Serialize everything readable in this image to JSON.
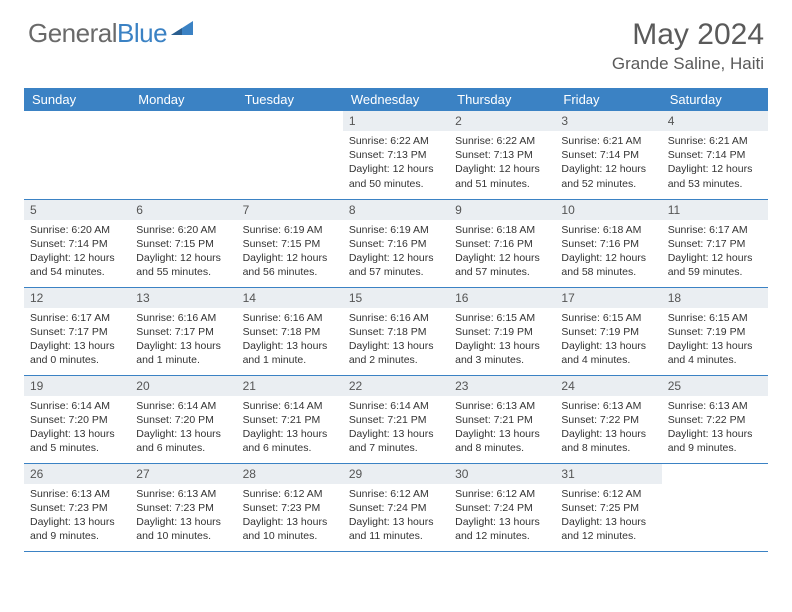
{
  "brand": {
    "part1": "General",
    "part2": "Blue"
  },
  "title": "May 2024",
  "location": "Grande Saline, Haiti",
  "colors": {
    "header_bg": "#3b82c4",
    "header_text": "#ffffff",
    "daynum_bg": "#eaeef2",
    "border": "#3b82c4",
    "title_color": "#5a5a5a",
    "logo_gray": "#6a6a6a",
    "logo_blue": "#3b82c4"
  },
  "weekdays": [
    "Sunday",
    "Monday",
    "Tuesday",
    "Wednesday",
    "Thursday",
    "Friday",
    "Saturday"
  ],
  "weeks": [
    [
      null,
      null,
      null,
      {
        "n": "1",
        "sr": "Sunrise: 6:22 AM",
        "ss": "Sunset: 7:13 PM",
        "d1": "Daylight: 12 hours",
        "d2": "and 50 minutes."
      },
      {
        "n": "2",
        "sr": "Sunrise: 6:22 AM",
        "ss": "Sunset: 7:13 PM",
        "d1": "Daylight: 12 hours",
        "d2": "and 51 minutes."
      },
      {
        "n": "3",
        "sr": "Sunrise: 6:21 AM",
        "ss": "Sunset: 7:14 PM",
        "d1": "Daylight: 12 hours",
        "d2": "and 52 minutes."
      },
      {
        "n": "4",
        "sr": "Sunrise: 6:21 AM",
        "ss": "Sunset: 7:14 PM",
        "d1": "Daylight: 12 hours",
        "d2": "and 53 minutes."
      }
    ],
    [
      {
        "n": "5",
        "sr": "Sunrise: 6:20 AM",
        "ss": "Sunset: 7:14 PM",
        "d1": "Daylight: 12 hours",
        "d2": "and 54 minutes."
      },
      {
        "n": "6",
        "sr": "Sunrise: 6:20 AM",
        "ss": "Sunset: 7:15 PM",
        "d1": "Daylight: 12 hours",
        "d2": "and 55 minutes."
      },
      {
        "n": "7",
        "sr": "Sunrise: 6:19 AM",
        "ss": "Sunset: 7:15 PM",
        "d1": "Daylight: 12 hours",
        "d2": "and 56 minutes."
      },
      {
        "n": "8",
        "sr": "Sunrise: 6:19 AM",
        "ss": "Sunset: 7:16 PM",
        "d1": "Daylight: 12 hours",
        "d2": "and 57 minutes."
      },
      {
        "n": "9",
        "sr": "Sunrise: 6:18 AM",
        "ss": "Sunset: 7:16 PM",
        "d1": "Daylight: 12 hours",
        "d2": "and 57 minutes."
      },
      {
        "n": "10",
        "sr": "Sunrise: 6:18 AM",
        "ss": "Sunset: 7:16 PM",
        "d1": "Daylight: 12 hours",
        "d2": "and 58 minutes."
      },
      {
        "n": "11",
        "sr": "Sunrise: 6:17 AM",
        "ss": "Sunset: 7:17 PM",
        "d1": "Daylight: 12 hours",
        "d2": "and 59 minutes."
      }
    ],
    [
      {
        "n": "12",
        "sr": "Sunrise: 6:17 AM",
        "ss": "Sunset: 7:17 PM",
        "d1": "Daylight: 13 hours",
        "d2": "and 0 minutes."
      },
      {
        "n": "13",
        "sr": "Sunrise: 6:16 AM",
        "ss": "Sunset: 7:17 PM",
        "d1": "Daylight: 13 hours",
        "d2": "and 1 minute."
      },
      {
        "n": "14",
        "sr": "Sunrise: 6:16 AM",
        "ss": "Sunset: 7:18 PM",
        "d1": "Daylight: 13 hours",
        "d2": "and 1 minute."
      },
      {
        "n": "15",
        "sr": "Sunrise: 6:16 AM",
        "ss": "Sunset: 7:18 PM",
        "d1": "Daylight: 13 hours",
        "d2": "and 2 minutes."
      },
      {
        "n": "16",
        "sr": "Sunrise: 6:15 AM",
        "ss": "Sunset: 7:19 PM",
        "d1": "Daylight: 13 hours",
        "d2": "and 3 minutes."
      },
      {
        "n": "17",
        "sr": "Sunrise: 6:15 AM",
        "ss": "Sunset: 7:19 PM",
        "d1": "Daylight: 13 hours",
        "d2": "and 4 minutes."
      },
      {
        "n": "18",
        "sr": "Sunrise: 6:15 AM",
        "ss": "Sunset: 7:19 PM",
        "d1": "Daylight: 13 hours",
        "d2": "and 4 minutes."
      }
    ],
    [
      {
        "n": "19",
        "sr": "Sunrise: 6:14 AM",
        "ss": "Sunset: 7:20 PM",
        "d1": "Daylight: 13 hours",
        "d2": "and 5 minutes."
      },
      {
        "n": "20",
        "sr": "Sunrise: 6:14 AM",
        "ss": "Sunset: 7:20 PM",
        "d1": "Daylight: 13 hours",
        "d2": "and 6 minutes."
      },
      {
        "n": "21",
        "sr": "Sunrise: 6:14 AM",
        "ss": "Sunset: 7:21 PM",
        "d1": "Daylight: 13 hours",
        "d2": "and 6 minutes."
      },
      {
        "n": "22",
        "sr": "Sunrise: 6:14 AM",
        "ss": "Sunset: 7:21 PM",
        "d1": "Daylight: 13 hours",
        "d2": "and 7 minutes."
      },
      {
        "n": "23",
        "sr": "Sunrise: 6:13 AM",
        "ss": "Sunset: 7:21 PM",
        "d1": "Daylight: 13 hours",
        "d2": "and 8 minutes."
      },
      {
        "n": "24",
        "sr": "Sunrise: 6:13 AM",
        "ss": "Sunset: 7:22 PM",
        "d1": "Daylight: 13 hours",
        "d2": "and 8 minutes."
      },
      {
        "n": "25",
        "sr": "Sunrise: 6:13 AM",
        "ss": "Sunset: 7:22 PM",
        "d1": "Daylight: 13 hours",
        "d2": "and 9 minutes."
      }
    ],
    [
      {
        "n": "26",
        "sr": "Sunrise: 6:13 AM",
        "ss": "Sunset: 7:23 PM",
        "d1": "Daylight: 13 hours",
        "d2": "and 9 minutes."
      },
      {
        "n": "27",
        "sr": "Sunrise: 6:13 AM",
        "ss": "Sunset: 7:23 PM",
        "d1": "Daylight: 13 hours",
        "d2": "and 10 minutes."
      },
      {
        "n": "28",
        "sr": "Sunrise: 6:12 AM",
        "ss": "Sunset: 7:23 PM",
        "d1": "Daylight: 13 hours",
        "d2": "and 10 minutes."
      },
      {
        "n": "29",
        "sr": "Sunrise: 6:12 AM",
        "ss": "Sunset: 7:24 PM",
        "d1": "Daylight: 13 hours",
        "d2": "and 11 minutes."
      },
      {
        "n": "30",
        "sr": "Sunrise: 6:12 AM",
        "ss": "Sunset: 7:24 PM",
        "d1": "Daylight: 13 hours",
        "d2": "and 12 minutes."
      },
      {
        "n": "31",
        "sr": "Sunrise: 6:12 AM",
        "ss": "Sunset: 7:25 PM",
        "d1": "Daylight: 13 hours",
        "d2": "and 12 minutes."
      },
      null
    ]
  ]
}
